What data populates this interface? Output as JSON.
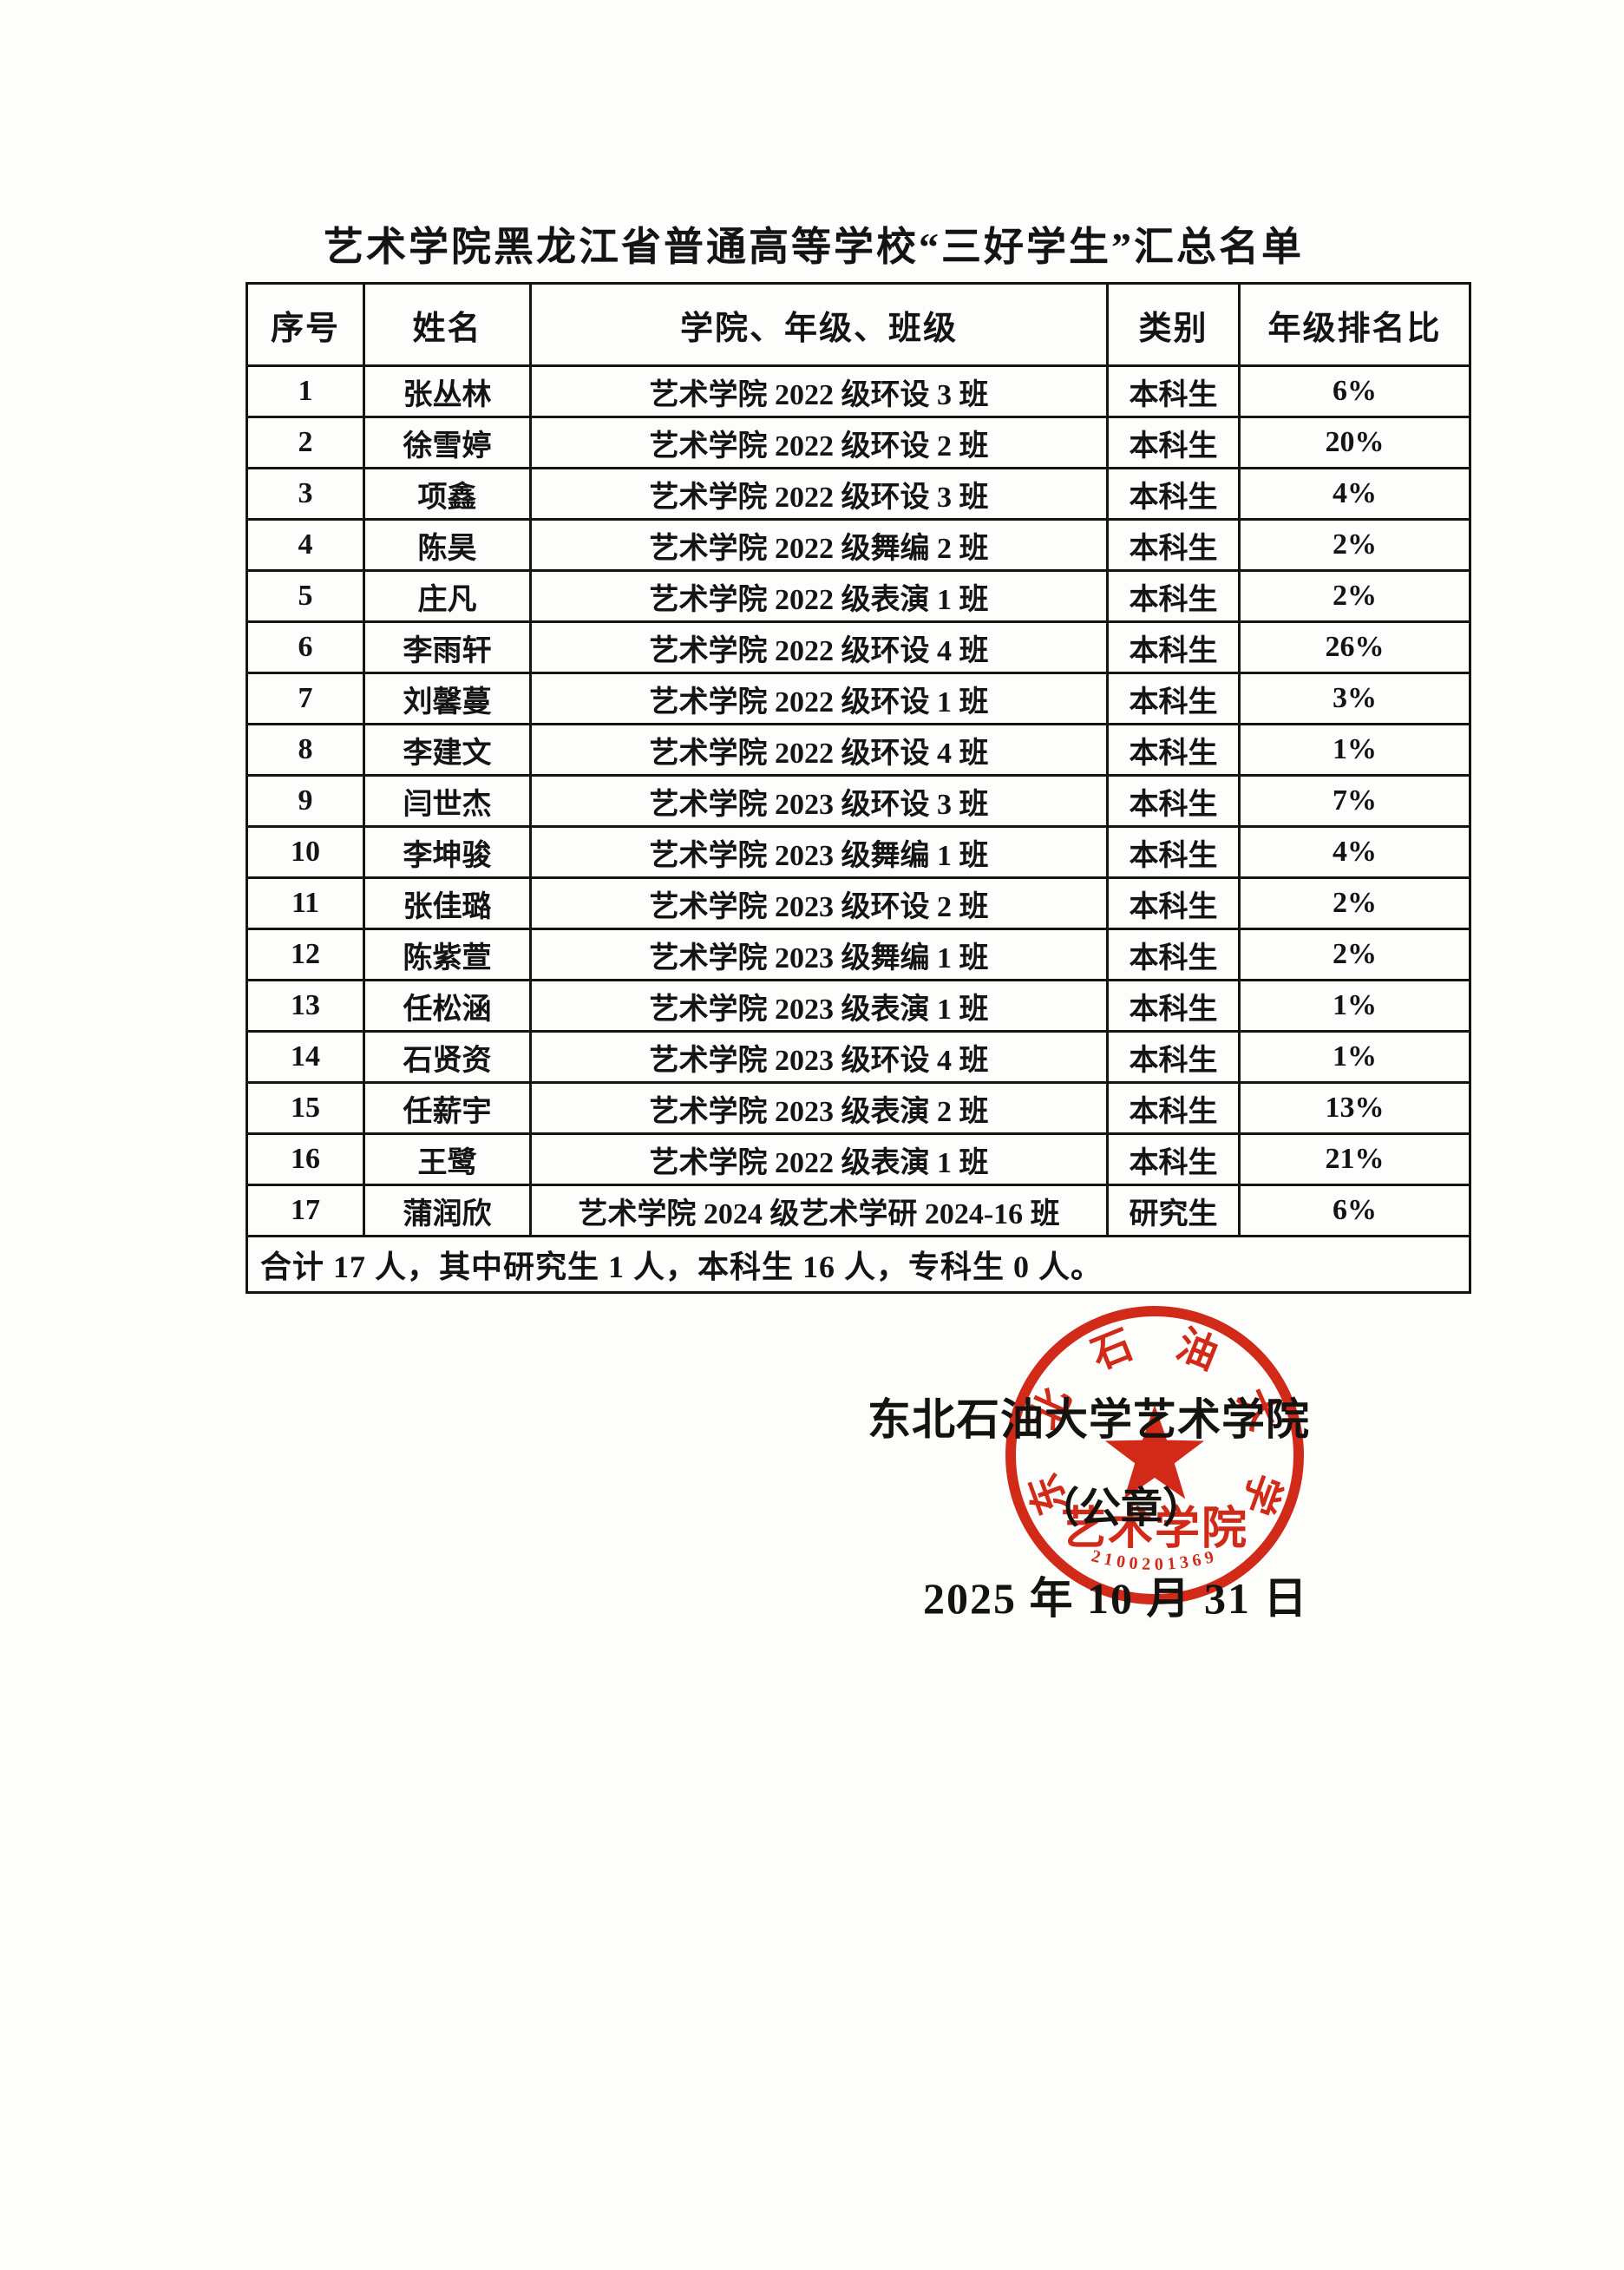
{
  "title": "艺术学院黑龙江省普通高等学校“三好学生”汇总名单",
  "table": {
    "headers": [
      "序号",
      "姓名",
      "学院、年级、班级",
      "类别",
      "年级排名比"
    ],
    "rows": [
      [
        "1",
        "张丛林",
        "艺术学院 2022 级环设 3 班",
        "本科生",
        "6%"
      ],
      [
        "2",
        "徐雪婷",
        "艺术学院 2022 级环设 2 班",
        "本科生",
        "20%"
      ],
      [
        "3",
        "项鑫",
        "艺术学院 2022 级环设 3 班",
        "本科生",
        "4%"
      ],
      [
        "4",
        "陈昊",
        "艺术学院 2022 级舞编 2 班",
        "本科生",
        "2%"
      ],
      [
        "5",
        "庄凡",
        "艺术学院 2022 级表演 1 班",
        "本科生",
        "2%"
      ],
      [
        "6",
        "李雨轩",
        "艺术学院 2022 级环设 4 班",
        "本科生",
        "26%"
      ],
      [
        "7",
        "刘馨蔓",
        "艺术学院 2022 级环设 1 班",
        "本科生",
        "3%"
      ],
      [
        "8",
        "李建文",
        "艺术学院 2022 级环设 4 班",
        "本科生",
        "1%"
      ],
      [
        "9",
        "闫世杰",
        "艺术学院 2023 级环设 3 班",
        "本科生",
        "7%"
      ],
      [
        "10",
        "李坤骏",
        "艺术学院 2023 级舞编 1 班",
        "本科生",
        "4%"
      ],
      [
        "11",
        "张佳璐",
        "艺术学院 2023 级环设 2 班",
        "本科生",
        "2%"
      ],
      [
        "12",
        "陈紫萱",
        "艺术学院 2023 级舞编 1 班",
        "本科生",
        "2%"
      ],
      [
        "13",
        "任松涵",
        "艺术学院 2023 级表演 1 班",
        "本科生",
        "1%"
      ],
      [
        "14",
        "石贤资",
        "艺术学院 2023 级环设 4 班",
        "本科生",
        "1%"
      ],
      [
        "15",
        "任薪宇",
        "艺术学院 2023 级表演 2 班",
        "本科生",
        "13%"
      ],
      [
        "16",
        "王鹭",
        "艺术学院 2022 级表演 1 班",
        "本科生",
        "21%"
      ],
      [
        "17",
        "蒲润欣",
        "艺术学院 2024 级艺术学研 2024-16 班",
        "研究生",
        "6%"
      ]
    ],
    "summary": "合计 17 人，其中研究生 1 人，本科生 16 人，专科生 0 人。"
  },
  "signature": {
    "org_line": "东北石油大学艺术学院",
    "seal_note": "（公章）",
    "date": "2025 年 10 月 31 日"
  },
  "seal": {
    "ring_chars": [
      "东",
      "北",
      "石",
      "油",
      "大",
      "学"
    ],
    "center_text": "艺术学院",
    "serial": "2100201369",
    "color": "#d22a18"
  }
}
